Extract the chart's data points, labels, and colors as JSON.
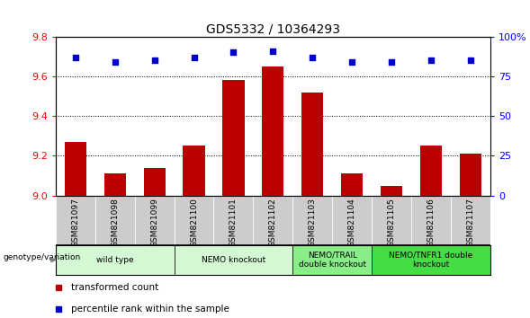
{
  "title": "GDS5332 / 10364293",
  "samples": [
    "GSM821097",
    "GSM821098",
    "GSM821099",
    "GSM821100",
    "GSM821101",
    "GSM821102",
    "GSM821103",
    "GSM821104",
    "GSM821105",
    "GSM821106",
    "GSM821107"
  ],
  "bar_values": [
    9.27,
    9.11,
    9.14,
    9.25,
    9.58,
    9.65,
    9.52,
    9.11,
    9.05,
    9.25,
    9.21
  ],
  "percentile_values": [
    87,
    84,
    85,
    87,
    90,
    91,
    87,
    84,
    84,
    85,
    85
  ],
  "ylim_left": [
    9.0,
    9.8
  ],
  "ylim_right": [
    0,
    100
  ],
  "yticks_left": [
    9.0,
    9.2,
    9.4,
    9.6,
    9.8
  ],
  "yticks_right": [
    0,
    25,
    50,
    75,
    100
  ],
  "bar_color": "#bb0000",
  "dot_color": "#0000cc",
  "bar_width": 0.55,
  "groups": [
    {
      "label": "wild type",
      "cols": [
        0,
        1,
        2
      ],
      "color": "#d4f7d4"
    },
    {
      "label": "NEMO knockout",
      "cols": [
        3,
        4,
        5
      ],
      "color": "#d4f7d4"
    },
    {
      "label": "NEMO/TRAIL\ndouble knockout",
      "cols": [
        6,
        7
      ],
      "color": "#88ee88"
    },
    {
      "label": "NEMO/TNFR1 double\nknockout",
      "cols": [
        8,
        9,
        10
      ],
      "color": "#44dd44"
    }
  ],
  "grid_color": "#000000",
  "sample_box_color": "#cccccc",
  "legend_items": [
    {
      "color": "#bb0000",
      "label": "transformed count"
    },
    {
      "color": "#0000cc",
      "label": "percentile rank within the sample"
    }
  ],
  "genotype_label": "genotype/variation"
}
